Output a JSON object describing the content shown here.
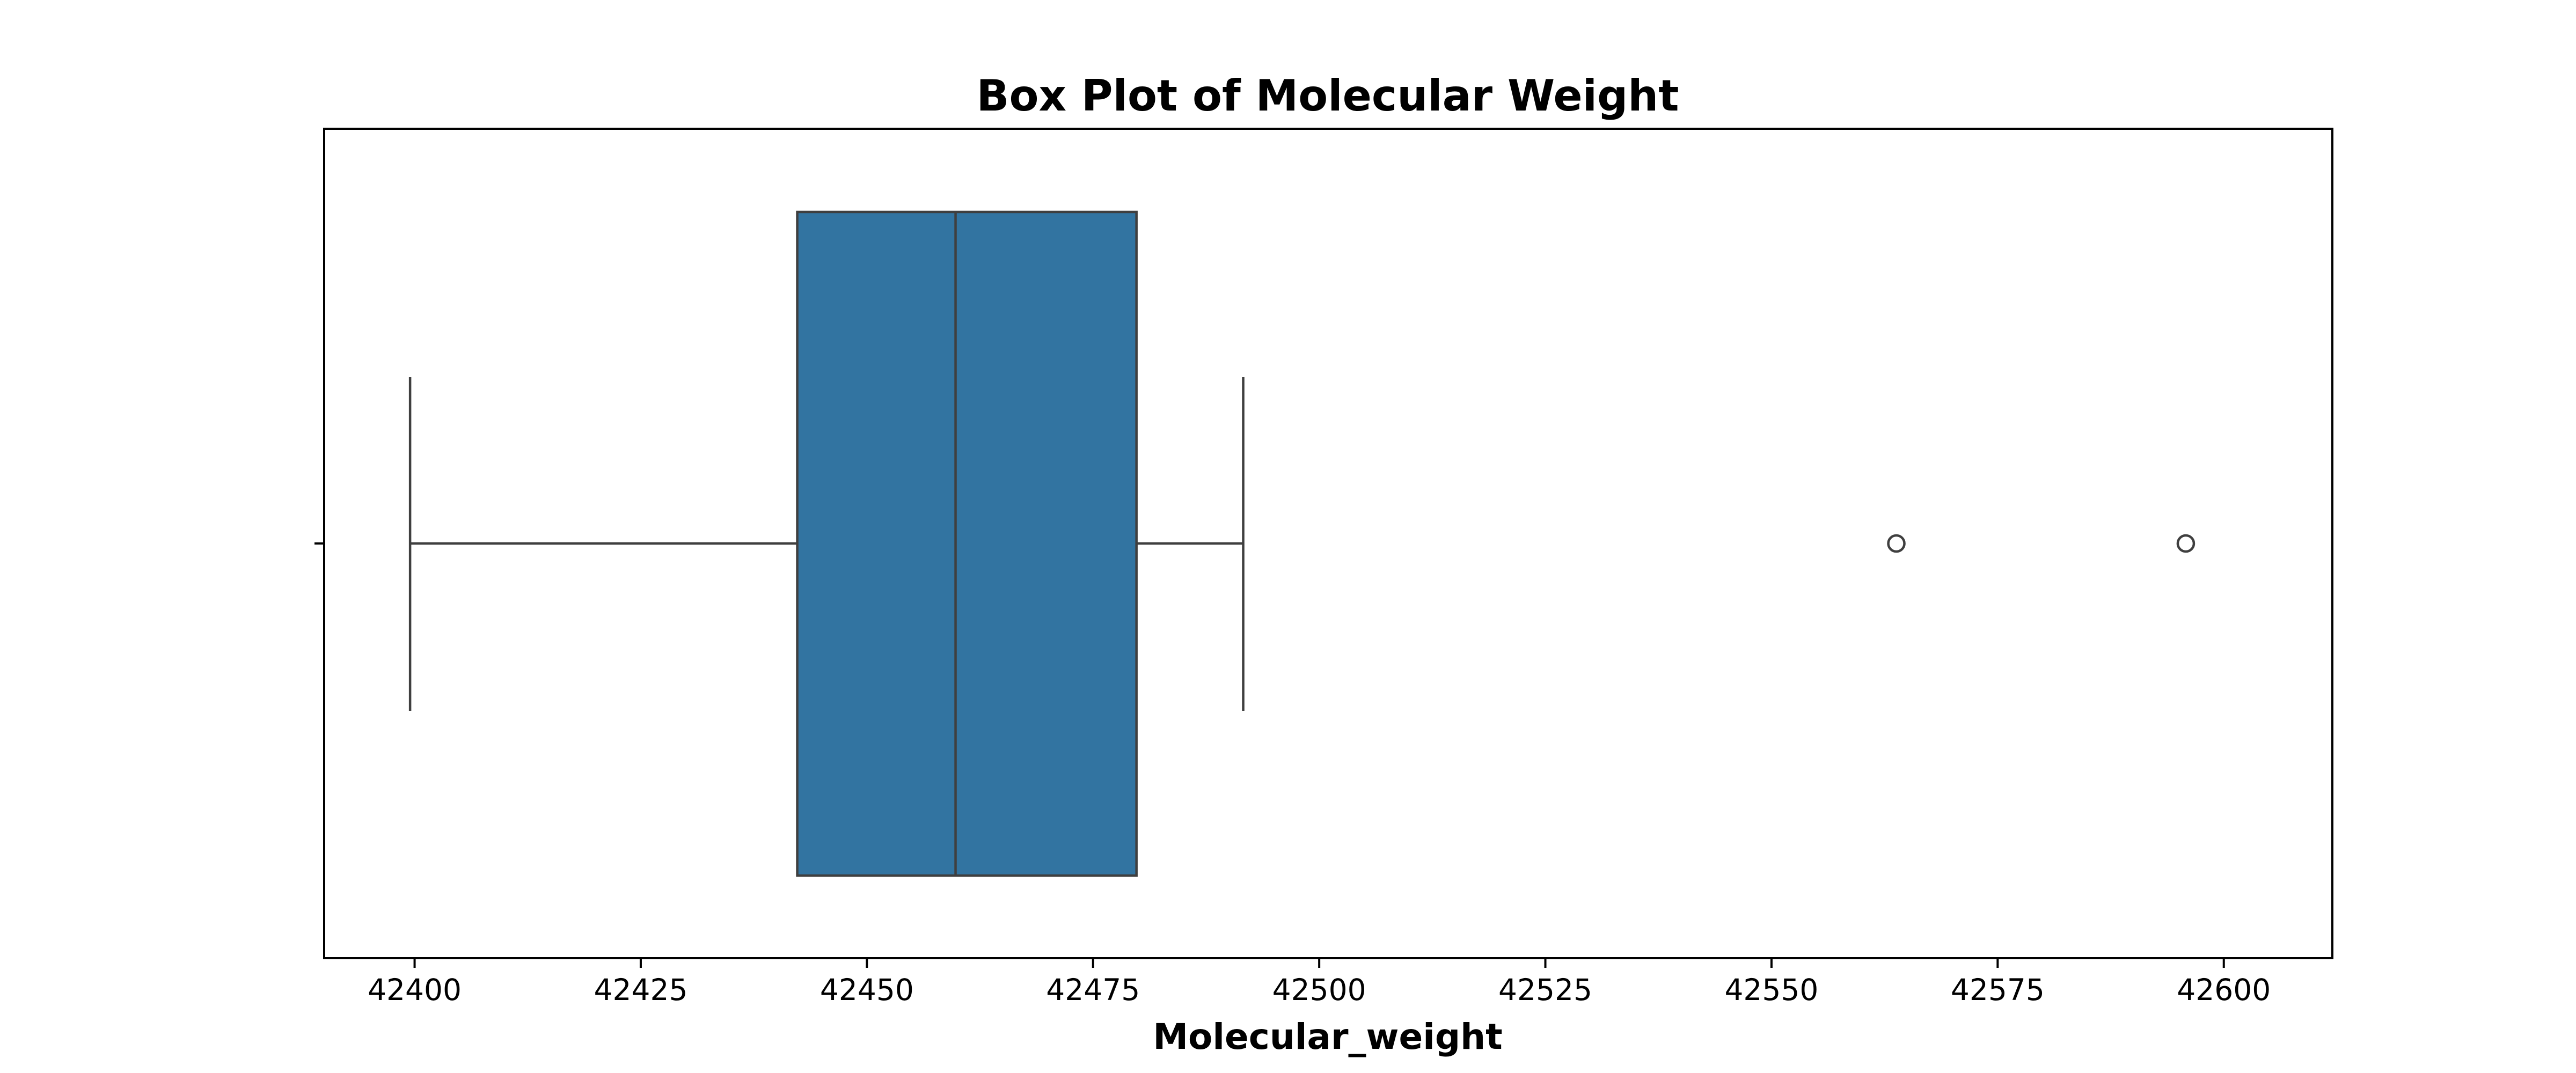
{
  "chart_data": {
    "type": "box",
    "title": "Box Plot of Molecular Weight",
    "xlabel": "Molecular_weight",
    "ylabel": "",
    "orientation": "horizontal",
    "xlim": [
      42390,
      42612
    ],
    "xticks": [
      42400,
      42425,
      42450,
      42475,
      42500,
      42525,
      42550,
      42575,
      42600
    ],
    "xtick_labels": [
      "42400",
      "42425",
      "42450",
      "42475",
      "42500",
      "42525",
      "42550",
      "42575",
      "42600"
    ],
    "box": {
      "whisker_low": 42399.5,
      "q1": 42442.3,
      "median": 42459.8,
      "q3": 42479.8,
      "whisker_high": 42491.6
    },
    "outliers": [
      42563.8,
      42595.8
    ],
    "grid": false,
    "colors": {
      "box_fill": "#3274a1",
      "line": "#3f3f3f",
      "frame": "#000000"
    }
  }
}
